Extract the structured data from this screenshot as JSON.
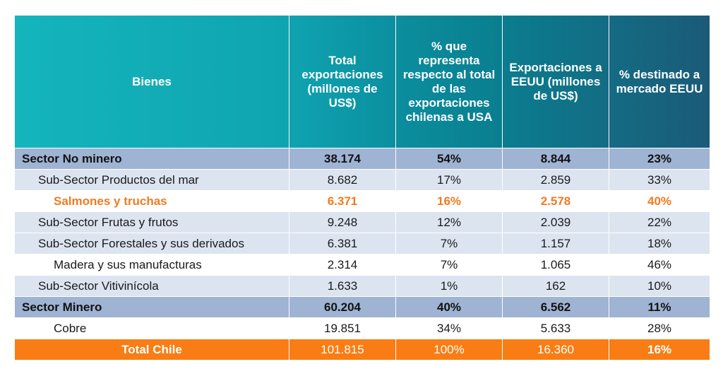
{
  "headers": {
    "bienes": "Bienes",
    "total": "Total exportaciones (millones de US$)",
    "porcentaje": "% que representa respecto al total de las exportaciones chilenas a USA",
    "eeuu": "Exportaciones a EEUU (millones de US$)",
    "destinado": "% destinado a mercado EEUU"
  },
  "rows": [
    {
      "label": "Sector No minero",
      "total": "38.174",
      "pct": "54%",
      "eeuu": "8.844",
      "dest": "23%"
    },
    {
      "label": "Sub-Sector Productos del mar",
      "total": "8.682",
      "pct": "17%",
      "eeuu": "2.859",
      "dest": "33%"
    },
    {
      "label": "Salmones y truchas",
      "total": "6.371",
      "pct": "16%",
      "eeuu": "2.578",
      "dest": "40%"
    },
    {
      "label": "Sub-Sector Frutas y frutos",
      "total": "9.248",
      "pct": "12%",
      "eeuu": "2.039",
      "dest": "22%"
    },
    {
      "label": "Sub-Sector Forestales y sus derivados",
      "total": "6.381",
      "pct": "7%",
      "eeuu": "1.157",
      "dest": "18%"
    },
    {
      "label": "Madera y sus manufacturas",
      "total": "2.314",
      "pct": "7%",
      "eeuu": "1.065",
      "dest": "46%"
    },
    {
      "label": "Sub-Sector Vitivinícola",
      "total": "1.633",
      "pct": "1%",
      "eeuu": "162",
      "dest": "10%"
    },
    {
      "label": "Sector Minero",
      "total": "60.204",
      "pct": "40%",
      "eeuu": "6.562",
      "dest": "11%"
    },
    {
      "label": "Cobre",
      "total": "19.851",
      "pct": "34%",
      "eeuu": "5.633",
      "dest": "28%"
    },
    {
      "label": "Total Chile",
      "total": "101.815",
      "pct": "100%",
      "eeuu": "16.360",
      "dest": "16%"
    }
  ],
  "colors": {
    "header_start": "#14b5bd",
    "header_end": "#1a5a78",
    "sector_row": "#9fb3d3",
    "sub_row": "#dce4f0",
    "highlight_text": "#f07b1f",
    "total_row": "#f97d14"
  }
}
